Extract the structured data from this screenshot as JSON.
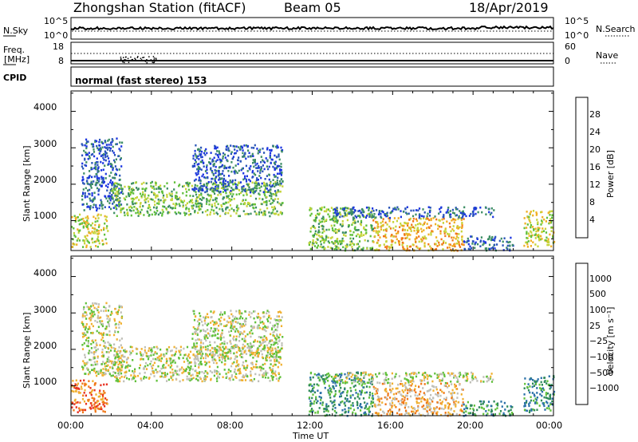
{
  "header": {
    "station": "Zhongshan Station (fitACF)",
    "beam": "Beam 05",
    "date": "18/Apr/2019"
  },
  "top_panels": {
    "nsky_label": "N.Sky",
    "nsky_ticks": [
      "10^5",
      "10^0"
    ],
    "nsearch_label": "N.Search",
    "nsearch_ticks": [
      "10^5",
      "10^0"
    ],
    "freq_label": "Freq.",
    "freq_unit": "[MHz]",
    "freq_ticks": [
      "18",
      "8"
    ],
    "nave_label": "Nave",
    "nave_ticks": [
      "60",
      "0"
    ],
    "cpid_label": "CPID",
    "cpid_value": "normal (fast stereo) 153"
  },
  "chart_data": [
    {
      "type": "heatmap",
      "name": "power",
      "ylabel": "Slant Range [km]",
      "yticks": [
        "4000",
        "3000",
        "2000",
        "1000"
      ],
      "ylim": [
        180,
        4560
      ],
      "xlim": [
        0,
        24
      ],
      "colorbar_label": "Power [dB]",
      "colorbar_ticks": [
        "28",
        "24",
        "20",
        "16",
        "12",
        "8",
        "4"
      ],
      "colors": [
        "#1b35e0",
        "#2a55b8",
        "#3c8d63",
        "#5fbf3a",
        "#c6d43a",
        "#f0b024",
        "#f07818",
        "#e02818"
      ],
      "scatter_regions": [
        {
          "t": [
            0.0,
            1.8
          ],
          "range": [
            300,
            1200
          ],
          "level": 4
        },
        {
          "t": [
            0.5,
            2.5
          ],
          "range": [
            1300,
            3300
          ],
          "level": 1
        },
        {
          "t": [
            2.0,
            10.5
          ],
          "range": [
            1150,
            2100
          ],
          "level": 3
        },
        {
          "t": [
            6.0,
            10.5
          ],
          "range": [
            1800,
            3100
          ],
          "level": 1
        },
        {
          "t": [
            11.8,
            15.0
          ],
          "range": [
            200,
            1400
          ],
          "level": 3
        },
        {
          "t": [
            15.0,
            19.5
          ],
          "range": [
            200,
            1100
          ],
          "level": 5
        },
        {
          "t": [
            13.0,
            21.0
          ],
          "range": [
            1100,
            1400
          ],
          "level": 1
        },
        {
          "t": [
            19.5,
            22.0
          ],
          "range": [
            200,
            600
          ],
          "level": 1
        },
        {
          "t": [
            22.5,
            24.0
          ],
          "range": [
            300,
            1300
          ],
          "level": 4
        }
      ]
    },
    {
      "type": "heatmap",
      "name": "velocity",
      "ylabel": "Slant Range [km]",
      "yticks": [
        "4000",
        "3000",
        "2000",
        "1000"
      ],
      "ylim": [
        180,
        4560
      ],
      "xlim": [
        0,
        24
      ],
      "xticks": [
        "00:00",
        "04:00",
        "08:00",
        "12:00",
        "16:00",
        "20:00",
        "00:00"
      ],
      "xlabel": "Time UT",
      "colorbar_label": "Velocity [m s⁻¹]",
      "colorbar_ticks": [
        "1000",
        "500",
        "100",
        "25",
        "−25",
        "−100",
        "−500",
        "−1000"
      ],
      "colors": [
        "#1b35b0",
        "#2a70a8",
        "#2f8a5a",
        "#60c03a",
        "#c0c0b8",
        "#f0b030",
        "#f07818",
        "#e83020",
        "#e01010"
      ],
      "scatter_regions": [
        {
          "t": [
            0.0,
            1.8
          ],
          "range": [
            300,
            1200
          ],
          "level": 6
        },
        {
          "t": [
            0.5,
            2.5
          ],
          "range": [
            1300,
            3300
          ],
          "level": 4
        },
        {
          "t": [
            2.0,
            10.5
          ],
          "range": [
            1150,
            2100
          ],
          "level": 4
        },
        {
          "t": [
            6.0,
            10.5
          ],
          "range": [
            1800,
            3100
          ],
          "level": 4
        },
        {
          "t": [
            11.8,
            15.0
          ],
          "range": [
            200,
            1400
          ],
          "level": 2
        },
        {
          "t": [
            15.0,
            19.5
          ],
          "range": [
            200,
            1100
          ],
          "level": 5
        },
        {
          "t": [
            13.0,
            21.0
          ],
          "range": [
            1100,
            1400
          ],
          "level": 4
        },
        {
          "t": [
            19.5,
            22.0
          ],
          "range": [
            200,
            600
          ],
          "level": 2
        },
        {
          "t": [
            22.5,
            24.0
          ],
          "range": [
            300,
            1300
          ],
          "level": 2
        }
      ]
    }
  ]
}
